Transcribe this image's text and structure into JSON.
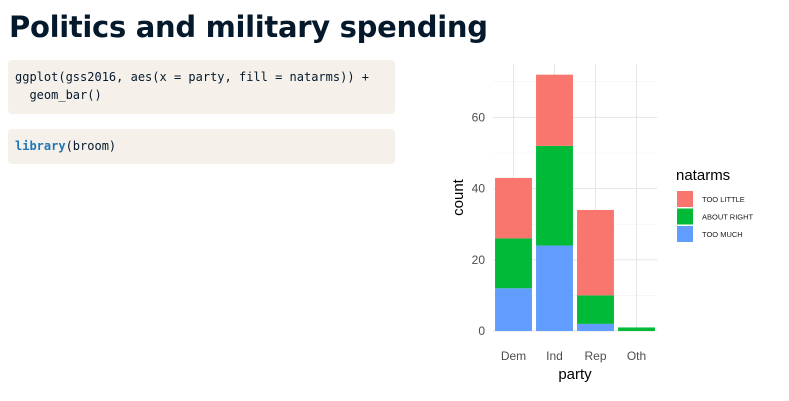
{
  "page": {
    "title": "Politics and military spending"
  },
  "code": {
    "block1": {
      "line1": "ggplot(gss2016, aes(x = party, fill = natarms)) +",
      "line2": "  geom_bar()"
    },
    "block2": {
      "keyword": "library",
      "rest": "(broom)"
    }
  },
  "chart_data": {
    "type": "bar",
    "stacked": true,
    "categories": [
      "Dem",
      "Ind",
      "Rep",
      "Oth"
    ],
    "series": [
      {
        "name": "TOO LITTLE",
        "color": "#f8766d",
        "values": [
          17,
          20,
          24,
          0
        ]
      },
      {
        "name": "ABOUT RIGHT",
        "color": "#00ba38",
        "values": [
          14,
          28,
          8,
          1
        ]
      },
      {
        "name": "TOO MUCH",
        "color": "#619cff",
        "values": [
          12,
          24,
          2,
          0
        ]
      }
    ],
    "xlabel": "party",
    "ylabel": "count",
    "ylim": [
      0,
      75
    ],
    "yticks": [
      0,
      20,
      40,
      60
    ],
    "grid": true,
    "legend": {
      "title": "natarms",
      "placement": "right"
    }
  }
}
